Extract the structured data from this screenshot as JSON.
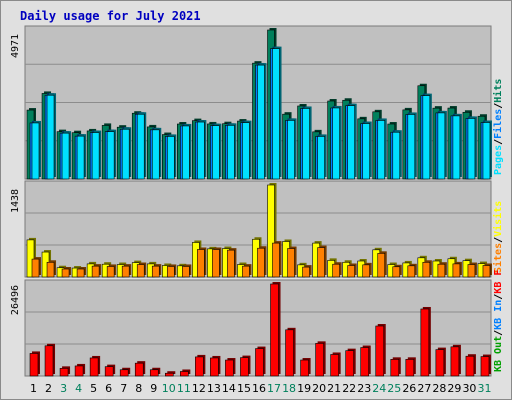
{
  "chart_data": {
    "type": "bar",
    "title": "Daily usage for July 2021",
    "categories": [
      "1",
      "2",
      "3",
      "4",
      "5",
      "6",
      "7",
      "8",
      "9",
      "10",
      "11",
      "12",
      "13",
      "14",
      "15",
      "16",
      "17",
      "18",
      "19",
      "20",
      "21",
      "22",
      "23",
      "24",
      "25",
      "26",
      "27",
      "28",
      "29",
      "30",
      "31"
    ],
    "weekend_days": [
      "3",
      "4",
      "10",
      "11",
      "17",
      "18",
      "24",
      "25",
      "31"
    ],
    "panels": [
      {
        "id": "hits_files_pages",
        "axis_max": 4971,
        "axis_max_label": "4971",
        "series": [
          {
            "name": "Hits",
            "color": "#00805c",
            "values": [
              2300,
              2855,
              1580,
              1545,
              1604,
              1788,
              1729,
              2195,
              1738,
              1483,
              1835,
              1948,
              1837,
              1845,
              1933,
              3865,
              4971,
              2163,
              2436,
              1573,
              2602,
              2627,
              2007,
              2241,
              1834,
              2306,
              3111,
              2364,
              2367,
              2226,
              2094
            ]
          },
          {
            "name": "Files",
            "color": "#0080ff",
            "values": [
              1870,
              2795,
              1530,
              1430,
              1550,
              1580,
              1660,
              2160,
              1640,
              1420,
              1770,
              1900,
              1780,
              1790,
              1880,
              3800,
              4350,
              1955,
              2353,
              1420,
              2370,
              2447,
              1850,
              1953,
              1560,
              2153,
              2781,
              2205,
              2106,
              2021,
              1885
            ]
          },
          {
            "name": "Pages",
            "color": "#00e0ff",
            "values": [
              1870,
              2795,
              1530,
              1430,
              1550,
              1580,
              1660,
              2160,
              1640,
              1420,
              1770,
              1900,
              1780,
              1790,
              1880,
              3800,
              4350,
              1955,
              2353,
              1420,
              2370,
              2447,
              1850,
              1953,
              1560,
              2153,
              2781,
              2205,
              2106,
              2021,
              1885
            ]
          }
        ]
      },
      {
        "id": "visits_sites",
        "axis_max": 1438,
        "axis_max_label": "1438",
        "series": [
          {
            "name": "Visits",
            "color": "#ffff00",
            "values": [
              580,
              390,
              145,
              140,
              205,
              200,
              195,
              225,
              205,
              180,
              175,
              540,
              440,
              445,
              195,
              590,
              1438,
              555,
              190,
              530,
              260,
              230,
              250,
              425,
              195,
              220,
              300,
              250,
              285,
              255,
              210
            ]
          },
          {
            "name": "Sites",
            "color": "#ff8000",
            "values": [
              280,
              230,
              125,
              125,
              170,
              165,
              170,
              195,
              170,
              165,
              165,
              430,
              430,
              420,
              170,
              450,
              530,
              445,
              155,
              460,
              200,
              180,
              190,
              370,
              160,
              175,
              230,
              200,
              205,
              195,
              180
            ]
          }
        ]
      },
      {
        "id": "kbytes",
        "axis_max": 26496,
        "axis_max_label": "26496",
        "series": [
          {
            "name": "KB F",
            "color": "#ff0000",
            "values": [
              6500,
              8700,
              2200,
              2900,
              5200,
              2700,
              1800,
              3700,
              1800,
              800,
              1300,
              5500,
              5200,
              4600,
              5300,
              7900,
              26496,
              13300,
              4600,
              9400,
              6200,
              7300,
              8200,
              14400,
              4800,
              4800,
              19300,
              7600,
              8400,
              5700,
              5600
            ]
          },
          {
            "name": "KB In",
            "color": "#0080ff",
            "values": []
          },
          {
            "name": "KB Out",
            "color": "#00a000",
            "values": []
          }
        ]
      }
    ],
    "colors": {
      "title": "#0000c0",
      "weekday_label": "#000000",
      "weekend_label": "#00805c",
      "plot_bg": "#c0c0c0",
      "frame_bg": "#e0e0e0",
      "grid": "#8c8c8c"
    }
  }
}
